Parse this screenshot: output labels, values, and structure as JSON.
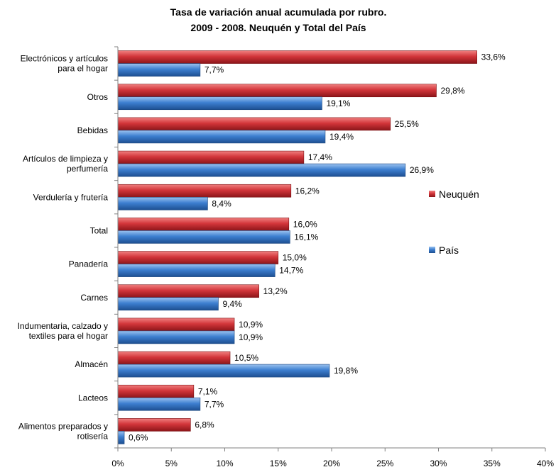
{
  "chart_data": {
    "type": "bar",
    "orientation": "horizontal",
    "title_lines": [
      "Tasa de variación anual acumulada por rubro.",
      "2009 - 2008. Neuquén y Total del País"
    ],
    "categories": [
      [
        "Electrónicos y artículos",
        "para el hogar"
      ],
      [
        "Otros"
      ],
      [
        "Bebidas"
      ],
      [
        "Artículos de limpieza y",
        "perfumería"
      ],
      [
        "Verdulería y frutería"
      ],
      [
        "Total"
      ],
      [
        "Panadería"
      ],
      [
        "Carnes"
      ],
      [
        "Indumentaria, calzado y",
        "textiles para el hogar"
      ],
      [
        "Almacén"
      ],
      [
        "Lacteos"
      ],
      [
        "Alimentos preparados y",
        "rotisería"
      ]
    ],
    "series": [
      {
        "name": "Neuquén",
        "color": "#c0282d",
        "values": [
          33.6,
          29.8,
          25.5,
          17.4,
          16.2,
          16.0,
          15.0,
          13.2,
          10.9,
          10.5,
          7.1,
          6.8
        ],
        "labels": [
          "33,6%",
          "29,8%",
          "25,5%",
          "17,4%",
          "16,2%",
          "16,0%",
          "15,0%",
          "13,2%",
          "10,9%",
          "10,5%",
          "7,1%",
          "6,8%"
        ]
      },
      {
        "name": "País",
        "color": "#3a78c9",
        "values": [
          7.7,
          19.1,
          19.4,
          26.9,
          8.4,
          16.1,
          14.7,
          9.4,
          10.9,
          19.8,
          7.7,
          0.6
        ],
        "labels": [
          "7,7%",
          "19,1%",
          "19,4%",
          "26,9%",
          "8,4%",
          "16,1%",
          "14,7%",
          "9,4%",
          "10,9%",
          "19,8%",
          "7,7%",
          "0,6%"
        ]
      }
    ],
    "xlim": [
      0,
      40
    ],
    "xticks": [
      0,
      5,
      10,
      15,
      20,
      25,
      30,
      35,
      40
    ],
    "xtick_labels": [
      "0%",
      "5%",
      "10%",
      "15%",
      "20%",
      "25%",
      "30%",
      "35%",
      "40%"
    ],
    "xlabel": "",
    "ylabel": "",
    "grid": false,
    "legend_position": "right"
  }
}
